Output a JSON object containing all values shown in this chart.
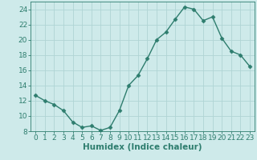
{
  "x": [
    0,
    1,
    2,
    3,
    4,
    5,
    6,
    7,
    8,
    9,
    10,
    11,
    12,
    13,
    14,
    15,
    16,
    17,
    18,
    19,
    20,
    21,
    22,
    23
  ],
  "y": [
    12.7,
    12.0,
    11.5,
    10.7,
    9.2,
    8.5,
    8.7,
    8.1,
    8.5,
    10.7,
    14.0,
    15.3,
    17.5,
    20.0,
    21.0,
    22.7,
    24.3,
    24.0,
    22.5,
    23.0,
    20.2,
    18.5,
    18.0,
    16.5
  ],
  "line_color": "#2e7d6e",
  "marker": "D",
  "marker_size": 2.5,
  "bg_color": "#ceeaea",
  "grid_color": "#b0d4d4",
  "xlabel": "Humidex (Indice chaleur)",
  "ylim": [
    8,
    25
  ],
  "xlim": [
    -0.5,
    23.5
  ],
  "yticks": [
    8,
    10,
    12,
    14,
    16,
    18,
    20,
    22,
    24
  ],
  "xticks": [
    0,
    1,
    2,
    3,
    4,
    5,
    6,
    7,
    8,
    9,
    10,
    11,
    12,
    13,
    14,
    15,
    16,
    17,
    18,
    19,
    20,
    21,
    22,
    23
  ],
  "xlabel_fontsize": 7.5,
  "tick_fontsize": 6.5,
  "line_width": 1.0
}
